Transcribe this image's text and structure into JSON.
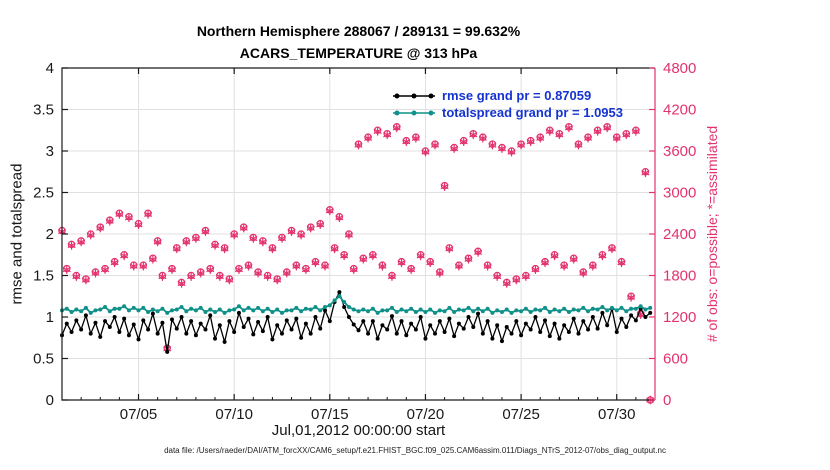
{
  "caption": {
    "text": "data file: /Users/raeder/DAI/ATM_forcXX/CAM6_setup/f.e21.FHIST_BGC.f09_025.CAM6assim.011/Diags_NTrS_2012-07/obs_diag_output.nc"
  },
  "legend": {
    "items": [
      {
        "label": "rmse grand pr = 0.87059",
        "series": "rmse"
      },
      {
        "label": "totalspread grand pr = 1.0953",
        "series": "totalspread"
      }
    ]
  },
  "colors": {
    "background": "#ffffff",
    "axis": "#1a1a1a",
    "grid": "#e0e0e0",
    "rmse": "#000000",
    "totalspread": "#0f9189",
    "obs": "#e3336f",
    "legend_text": "#1533d1"
  },
  "chart_data": {
    "type": "line",
    "title_line1": "Northern Hemisphere 288067 / 289131 = 99.632%",
    "title_line2": "ACARS_TEMPERATURE @ 313 hPa",
    "xlabel": "Jul,01,2012 00:00:00 start",
    "ylabel_left": "rmse and totalspread",
    "ylabel_right": "# of obs: o=possible; *=assimilated",
    "xlim": [
      1,
      32
    ],
    "ylim_left": [
      0,
      4
    ],
    "ylim_right": [
      0,
      4800
    ],
    "left_ticks": [
      0,
      0.5,
      1,
      1.5,
      2,
      2.5,
      3,
      3.5,
      4
    ],
    "right_ticks": [
      0,
      600,
      1200,
      1800,
      2400,
      3000,
      3600,
      4200,
      4800
    ],
    "x_tick_values": [
      5,
      10,
      15,
      20,
      25,
      30
    ],
    "x_tick_labels": [
      "07/05",
      "07/10",
      "07/15",
      "07/20",
      "07/25",
      "07/30"
    ],
    "grid": true,
    "legend_position": "upper-center-right",
    "totals": {
      "possible": 289131,
      "assimilated": 288067,
      "assimilated_percent": 99.632,
      "rmse_grand_prior": 0.87059,
      "totalspread_grand_prior": 1.0953
    },
    "x": [
      1,
      1.25,
      1.5,
      1.75,
      2,
      2.25,
      2.5,
      2.75,
      3,
      3.25,
      3.5,
      3.75,
      4,
      4.25,
      4.5,
      4.75,
      5,
      5.25,
      5.5,
      5.75,
      6,
      6.25,
      6.5,
      6.75,
      7,
      7.25,
      7.5,
      7.75,
      8,
      8.25,
      8.5,
      8.75,
      9,
      9.25,
      9.5,
      9.75,
      10,
      10.25,
      10.5,
      10.75,
      11,
      11.25,
      11.5,
      11.75,
      12,
      12.25,
      12.5,
      12.75,
      13,
      13.25,
      13.5,
      13.75,
      14,
      14.25,
      14.5,
      14.75,
      15,
      15.25,
      15.5,
      15.75,
      16,
      16.25,
      16.5,
      16.75,
      17,
      17.25,
      17.5,
      17.75,
      18,
      18.25,
      18.5,
      18.75,
      19,
      19.25,
      19.5,
      19.75,
      20,
      20.25,
      20.5,
      20.75,
      21,
      21.25,
      21.5,
      21.75,
      22,
      22.25,
      22.5,
      22.75,
      23,
      23.25,
      23.5,
      23.75,
      24,
      24.25,
      24.5,
      24.75,
      25,
      25.25,
      25.5,
      25.75,
      26,
      26.25,
      26.5,
      26.75,
      27,
      27.25,
      27.5,
      27.75,
      28,
      28.25,
      28.5,
      28.75,
      29,
      29.25,
      29.5,
      29.75,
      30,
      30.25,
      30.5,
      30.75,
      31,
      31.25,
      31.5,
      31.75
    ],
    "series": [
      {
        "name": "rmse",
        "type": "line",
        "axis": "left",
        "marker": "dot",
        "color_key": "rmse",
        "values": [
          0.78,
          0.92,
          0.82,
          0.96,
          0.85,
          1.02,
          0.8,
          0.93,
          0.76,
          0.95,
          0.88,
          1.0,
          0.82,
          0.98,
          0.78,
          0.91,
          0.73,
          0.96,
          0.85,
          1.04,
          0.8,
          0.93,
          0.58,
          0.97,
          0.86,
          1.0,
          0.8,
          0.95,
          0.78,
          0.92,
          0.85,
          1.02,
          0.74,
          0.9,
          0.7,
          0.95,
          0.82,
          1.05,
          0.88,
          0.98,
          0.79,
          0.94,
          0.83,
          1.0,
          0.73,
          0.9,
          0.8,
          0.96,
          0.85,
          0.98,
          0.75,
          0.92,
          0.8,
          1.0,
          0.86,
          1.08,
          0.95,
          1.18,
          1.3,
          1.12,
          1.0,
          0.91,
          0.84,
          0.95,
          0.8,
          0.95,
          0.74,
          0.9,
          0.85,
          1.01,
          0.8,
          0.95,
          0.78,
          0.92,
          0.85,
          1.0,
          0.74,
          0.9,
          0.8,
          0.95,
          0.82,
          0.98,
          0.77,
          0.92,
          0.86,
          1.0,
          0.88,
          1.04,
          0.8,
          0.95,
          0.74,
          0.9,
          0.71,
          0.88,
          0.8,
          0.95,
          0.78,
          0.92,
          0.85,
          1.0,
          0.82,
          0.96,
          0.77,
          0.92,
          0.74,
          0.9,
          0.82,
          0.98,
          0.8,
          0.95,
          0.85,
          1.0,
          0.86,
          1.05,
          0.9,
          1.1,
          0.82,
          0.98,
          0.88,
          1.02,
          0.96,
          1.1,
          1.0,
          1.05
        ]
      },
      {
        "name": "totalspread",
        "type": "line",
        "axis": "left",
        "marker": "dot",
        "color_key": "totalspread",
        "values": [
          1.08,
          1.1,
          1.06,
          1.09,
          1.07,
          1.11,
          1.05,
          1.08,
          1.09,
          1.12,
          1.07,
          1.1,
          1.1,
          1.13,
          1.08,
          1.11,
          1.08,
          1.11,
          1.06,
          1.09,
          1.07,
          1.1,
          1.05,
          1.08,
          1.09,
          1.12,
          1.07,
          1.1,
          1.08,
          1.11,
          1.06,
          1.09,
          1.06,
          1.09,
          1.05,
          1.08,
          1.09,
          1.13,
          1.08,
          1.11,
          1.08,
          1.11,
          1.07,
          1.1,
          1.06,
          1.09,
          1.05,
          1.08,
          1.08,
          1.11,
          1.07,
          1.1,
          1.09,
          1.12,
          1.08,
          1.12,
          1.14,
          1.2,
          1.25,
          1.18,
          1.12,
          1.09,
          1.07,
          1.09,
          1.07,
          1.1,
          1.05,
          1.08,
          1.08,
          1.11,
          1.06,
          1.09,
          1.07,
          1.1,
          1.06,
          1.09,
          1.06,
          1.09,
          1.05,
          1.08,
          1.07,
          1.11,
          1.06,
          1.09,
          1.08,
          1.11,
          1.07,
          1.1,
          1.07,
          1.1,
          1.05,
          1.08,
          1.06,
          1.09,
          1.05,
          1.08,
          1.07,
          1.1,
          1.06,
          1.09,
          1.08,
          1.11,
          1.06,
          1.09,
          1.07,
          1.1,
          1.06,
          1.09,
          1.08,
          1.11,
          1.07,
          1.1,
          1.09,
          1.12,
          1.08,
          1.11,
          1.08,
          1.11,
          1.07,
          1.1,
          1.1,
          1.13,
          1.09,
          1.11
        ]
      },
      {
        "name": "possible_obs",
        "type": "scatter",
        "axis": "right",
        "marker": "o",
        "color_key": "obs",
        "values": [
          2450,
          1900,
          2250,
          1800,
          2300,
          1750,
          2400,
          1850,
          2500,
          1900,
          2600,
          2000,
          2700,
          2100,
          2650,
          1950,
          2550,
          1950,
          2700,
          2050,
          2300,
          1800,
          750,
          1900,
          2200,
          1700,
          2300,
          1800,
          2350,
          1850,
          2450,
          1900,
          2250,
          1800,
          2200,
          1750,
          2400,
          1900,
          2500,
          1950,
          2350,
          1850,
          2300,
          1800,
          2200,
          1750,
          2350,
          1850,
          2450,
          1950,
          2400,
          1900,
          2500,
          2000,
          2550,
          1950,
          2750,
          2200,
          2650,
          2100,
          2400,
          1900,
          3700,
          2050,
          3800,
          2100,
          3900,
          1950,
          3850,
          1800,
          3950,
          2000,
          3750,
          1900,
          3800,
          2100,
          3600,
          2000,
          3700,
          1850,
          3100,
          2200,
          3650,
          1950,
          3750,
          2050,
          3850,
          2150,
          3800,
          1950,
          3700,
          1800,
          3650,
          1700,
          3600,
          1750,
          3700,
          1800,
          3750,
          1900,
          3800,
          2000,
          3900,
          2100,
          3850,
          1950,
          3950,
          2050,
          3700,
          1850,
          3800,
          1950,
          3900,
          2100,
          3950,
          2200,
          3800,
          2000,
          3850,
          1500,
          3900,
          1250,
          3300,
          0
        ]
      },
      {
        "name": "assimilated_obs",
        "type": "scatter",
        "axis": "right",
        "marker": "*",
        "color_key": "obs",
        "values": [
          2435,
          1885,
          2235,
          1785,
          2285,
          1735,
          2385,
          1835,
          2485,
          1885,
          2585,
          1985,
          2685,
          2085,
          2635,
          1935,
          2535,
          1935,
          2685,
          2035,
          2285,
          1785,
          740,
          1885,
          2185,
          1685,
          2285,
          1785,
          2335,
          1835,
          2435,
          1885,
          2235,
          1785,
          2185,
          1735,
          2385,
          1885,
          2485,
          1935,
          2335,
          1835,
          2285,
          1785,
          2185,
          1735,
          2335,
          1835,
          2435,
          1935,
          2385,
          1885,
          2485,
          1985,
          2535,
          1935,
          2735,
          2185,
          2635,
          2085,
          2385,
          1885,
          3685,
          2035,
          3785,
          2085,
          3885,
          1935,
          3835,
          1785,
          3935,
          1985,
          3735,
          1885,
          3785,
          2085,
          3585,
          1985,
          3685,
          1835,
          3085,
          2185,
          3635,
          1935,
          3735,
          2035,
          3835,
          2135,
          3785,
          1935,
          3685,
          1785,
          3635,
          1685,
          3585,
          1735,
          3685,
          1785,
          3735,
          1885,
          3785,
          1985,
          3885,
          2085,
          3835,
          1935,
          3935,
          2035,
          3685,
          1835,
          3785,
          1935,
          3885,
          2085,
          3935,
          2185,
          3785,
          1985,
          3835,
          1485,
          3885,
          1235,
          3285,
          0
        ]
      }
    ]
  }
}
